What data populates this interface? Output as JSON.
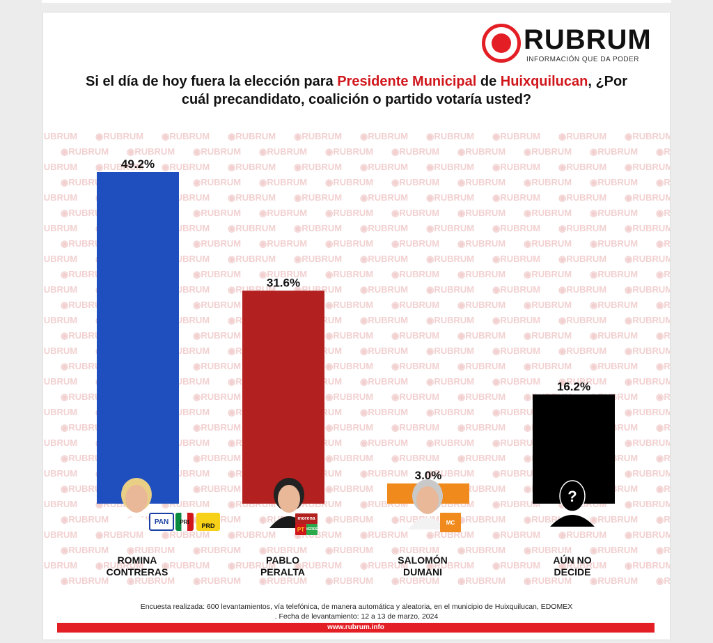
{
  "brand": {
    "name": "RUBRUM",
    "tagline": "INFORMACIÓN QUE DA PODER",
    "watermark_text": "RUBRUM",
    "url": "www.rubrum.info",
    "color": "#e31e24"
  },
  "question": {
    "part1": "Si el día de hoy fuera la elección para ",
    "highlight1": "Presidente Municipal",
    "part2": " de ",
    "highlight2": "Huixquilucan",
    "part3": ", ¿Por cuál precandidato, coalición o partido votaría usted?"
  },
  "chart_data": {
    "type": "bar",
    "categories": [
      "ROMINA CONTRERAS",
      "PABLO PERALTA",
      "SALOMÓN DUMANI",
      "AÚN NO DECIDE"
    ],
    "values": [
      49.2,
      31.6,
      3.0,
      16.2
    ],
    "value_labels": [
      "49.2%",
      "31.6%",
      "3.0%",
      "16.2%"
    ],
    "colors": [
      "#1f4fbf",
      "#b22020",
      "#f08a1c",
      "#000000"
    ],
    "ylim": [
      0,
      49.2
    ]
  },
  "candidates": [
    {
      "line1": "ROMINA",
      "line2": "CONTRERAS",
      "parties": [
        "PAN",
        "PRI",
        "PRD"
      ]
    },
    {
      "line1": "PABLO",
      "line2": "PERALTA",
      "parties": [
        "PT",
        "morena",
        "VERDE"
      ]
    },
    {
      "line1": "SALOMÓN",
      "line2": "DUMANI",
      "parties": [
        "MC"
      ]
    },
    {
      "line1": "AÚN NO",
      "line2": "DECIDE",
      "parties": [],
      "symbol": "?"
    }
  ],
  "footnote": {
    "line1": "Encuesta realizada: 600 levantamientos, vía telefónica, de manera automática y aleatoria, en el municipio de Huixquilucan, EDOMEX",
    "line2": ". Fecha de levantamiento: 12 a 13 de marzo, 2024"
  }
}
